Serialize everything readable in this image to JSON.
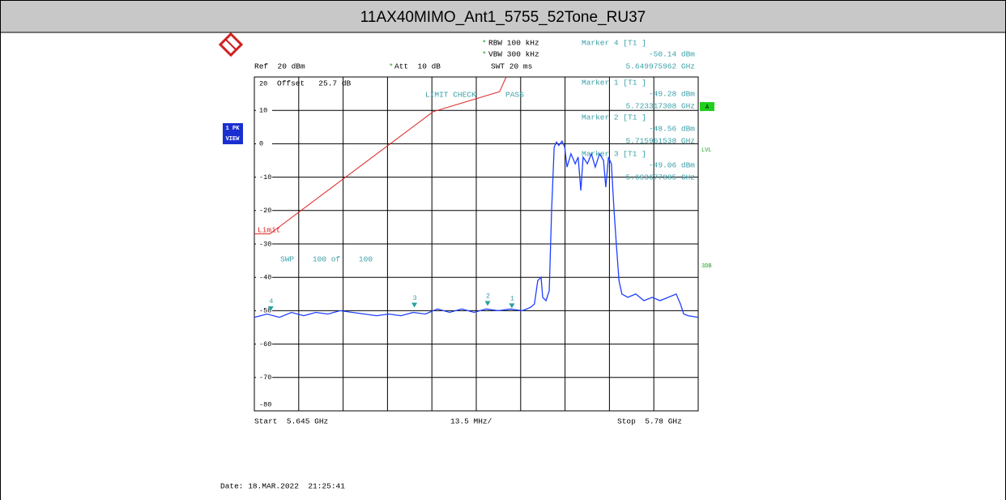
{
  "chart_data": {
    "type": "line",
    "title": "11AX40MIMO_Ant1_5755_52Tone_RU37",
    "xlim": [
      5.645,
      5.78
    ],
    "ylim": [
      -80,
      20
    ],
    "yticks": [
      20,
      10,
      0,
      -10,
      -20,
      -30,
      -40,
      -50,
      -60,
      -70,
      -80
    ],
    "xgrid_divisions": 10,
    "grid": true,
    "series": [
      {
        "name": "Trace",
        "color": "#1f3fff",
        "x": [
          5.645,
          5.6489,
          5.6526,
          5.6563,
          5.66,
          5.6637,
          5.6674,
          5.6711,
          5.6748,
          5.6785,
          5.6822,
          5.6859,
          5.6896,
          5.6933,
          5.697,
          5.7007,
          5.7044,
          5.7081,
          5.7118,
          5.7155,
          5.7192,
          5.7229,
          5.7265,
          5.729,
          5.7302,
          5.7312,
          5.7322,
          5.7327,
          5.7337,
          5.7347,
          5.7354,
          5.7362,
          5.7369,
          5.7376,
          5.7386,
          5.7394,
          5.7401,
          5.7413,
          5.7426,
          5.7435,
          5.7443,
          5.745,
          5.7463,
          5.7475,
          5.7487,
          5.75,
          5.7512,
          5.7519,
          5.7527,
          5.7536,
          5.7544,
          5.7551,
          5.7559,
          5.7568,
          5.7586,
          5.761,
          5.7635,
          5.766,
          5.7684,
          5.7709,
          5.7733,
          5.7746,
          5.7756,
          5.777,
          5.78
        ],
        "values": [
          -52,
          -51,
          -52,
          -50.5,
          -51.5,
          -50.5,
          -51,
          -50,
          -50.5,
          -51,
          -51.5,
          -51,
          -51.5,
          -50.5,
          -51,
          -49.5,
          -50.5,
          -49.5,
          -50.5,
          -49.5,
          -50,
          -49.5,
          -50,
          -49,
          -48,
          -41,
          -40,
          -46,
          -47,
          -44,
          -20,
          -1,
          0.5,
          -0.5,
          0.8,
          -1,
          -7,
          -3,
          -6,
          -4,
          -14,
          -4,
          -6,
          -3,
          -7,
          -3,
          -5,
          -13,
          -4,
          -6,
          -20,
          -30,
          -41,
          -45,
          -46,
          -45,
          -47,
          -46,
          -47,
          -46,
          -45,
          -48,
          -51,
          -51.5,
          -52
        ]
      },
      {
        "name": "Limit",
        "color": "#e02020",
        "x": [
          5.645,
          5.6497,
          5.6994,
          5.7196,
          5.7216
        ],
        "values": [
          -27,
          -27,
          9.6,
          15.6,
          20
        ]
      }
    ],
    "markers": [
      {
        "id": "1",
        "label": "Marker 1 [T1 ]",
        "x": 5.723317308,
        "x_label": "5.723317308 GHz",
        "value": -49.28,
        "value_label": "-49.28 dBm"
      },
      {
        "id": "2",
        "label": "Marker 2 [T1 ]",
        "x": 5.715961538,
        "x_label": "5.715961538 GHz",
        "value": -48.56,
        "value_label": "-48.56 dBm"
      },
      {
        "id": "3",
        "label": "Marker 3 [T1 ]",
        "x": 5.693677885,
        "x_label": "5.693677885 GHz",
        "value": -49.06,
        "value_label": "-49.06 dBm"
      },
      {
        "id": "4",
        "label": "Marker 4 [T1 ]",
        "x": 5.649975962,
        "x_label": "5.649975962 GHz",
        "value": -50.14,
        "value_label": "-50.14 dBm"
      }
    ],
    "settings": {
      "rbw": "RBW 100 kHz",
      "vbw": "VBW 300 kHz",
      "ref": "Ref  20 dBm",
      "att": "Att  10 dB",
      "swt": "SWT 20 ms",
      "offset": "Offset   25.7 dB",
      "limit_check": "LIMIT CHECK",
      "pass": "PASS",
      "limit_label": "Limit",
      "sweep": "SWP    100 of    100",
      "trace_mode_1": "1 PK",
      "trace_mode_2": "VIEW",
      "side_a": "A",
      "side_lvl": "LVL",
      "side_3db": "3DB",
      "start": "Start  5.645 GHz",
      "span_per_div": "13.5 MHz/",
      "stop": "Stop  5.78 GHz",
      "date": "Date: 18.MAR.2022  21:25:41",
      "star": "*"
    }
  }
}
